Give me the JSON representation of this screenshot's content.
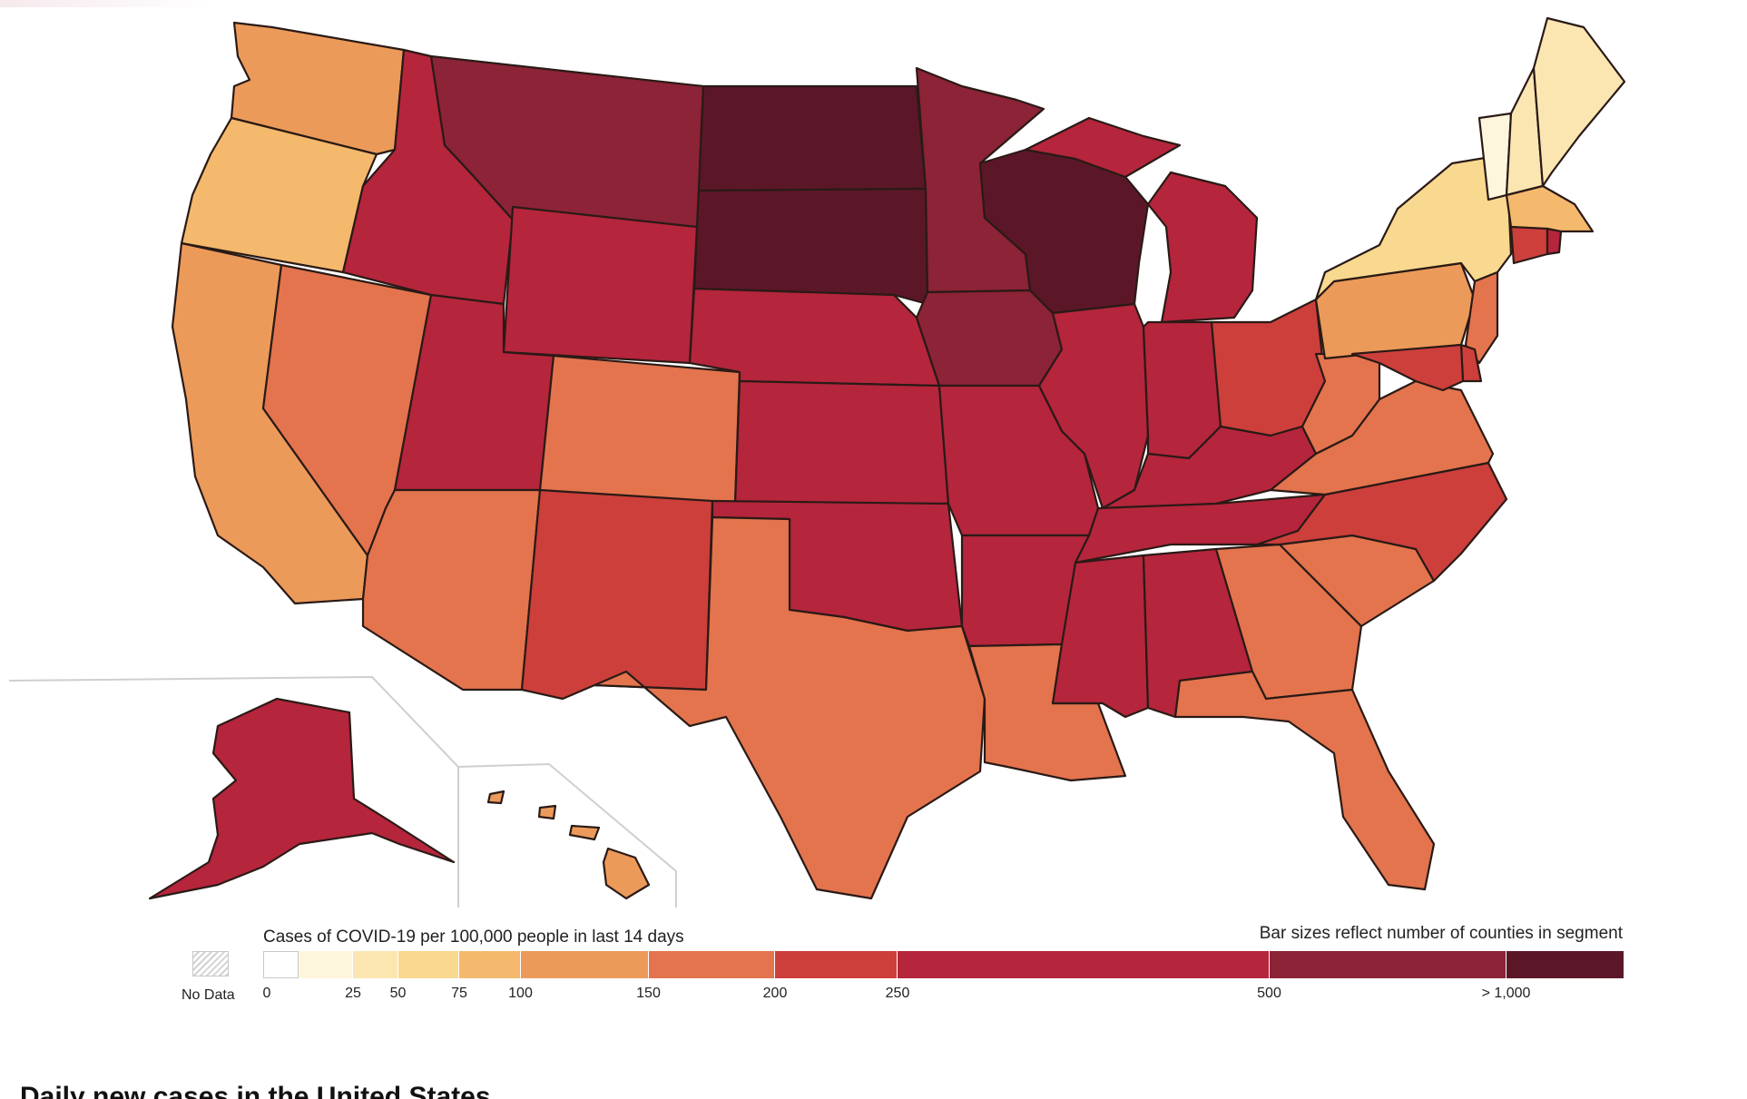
{
  "legend": {
    "title": "Cases of COVID-19 per 100,000 people in last 14 days",
    "note": "Bar sizes reflect number of counties in segment",
    "no_data_label": "No Data",
    "ticks": [
      {
        "label": "0",
        "value": 0
      },
      {
        "label": "25",
        "value": 25
      },
      {
        "label": "50",
        "value": 50
      },
      {
        "label": "75",
        "value": 75
      },
      {
        "label": "100",
        "value": 100
      },
      {
        "label": "150",
        "value": 150
      },
      {
        "label": "200",
        "value": 200
      },
      {
        "label": "250",
        "value": 250
      },
      {
        "label": "500",
        "value": 500
      },
      {
        "label": "> 1,000",
        "value": 1000
      }
    ],
    "segments": [
      {
        "range": "0",
        "color": "#ffffff",
        "share": 0.026
      },
      {
        "range": "0-25",
        "color": "#fef6dc",
        "share": 0.04
      },
      {
        "range": "25-50",
        "color": "#fbe6b2",
        "share": 0.033
      },
      {
        "range": "50-75",
        "color": "#f9d88f",
        "share": 0.045
      },
      {
        "range": "75-100",
        "color": "#f4b96c",
        "share": 0.045
      },
      {
        "range": "100-150",
        "color": "#ec9a5a",
        "share": 0.094
      },
      {
        "range": "150-200",
        "color": "#e3744d",
        "share": 0.093
      },
      {
        "range": "200-250",
        "color": "#cd3f3b",
        "share": 0.09
      },
      {
        "range": "250-500",
        "color": "#b5253c",
        "share": 0.273
      },
      {
        "range": "500-1000",
        "color": "#8c2337",
        "share": 0.174
      },
      {
        "range": "1000+",
        "color": "#5b1728",
        "share": 0.087
      }
    ]
  },
  "map_states": [
    {
      "id": "WA",
      "fill": "#ec9a5a"
    },
    {
      "id": "OR",
      "fill": "#f4b96c"
    },
    {
      "id": "CA",
      "fill": "#ec9a5a"
    },
    {
      "id": "NV",
      "fill": "#e3744d"
    },
    {
      "id": "ID",
      "fill": "#b5253c"
    },
    {
      "id": "MT",
      "fill": "#8c2337"
    },
    {
      "id": "WY",
      "fill": "#b5253c"
    },
    {
      "id": "UT",
      "fill": "#b5253c"
    },
    {
      "id": "AZ",
      "fill": "#e3744d"
    },
    {
      "id": "CO",
      "fill": "#e3744d"
    },
    {
      "id": "NM",
      "fill": "#cd3f3b"
    },
    {
      "id": "ND",
      "fill": "#5b1728"
    },
    {
      "id": "SD",
      "fill": "#5b1728"
    },
    {
      "id": "NE",
      "fill": "#b5253c"
    },
    {
      "id": "KS",
      "fill": "#b5253c"
    },
    {
      "id": "OK",
      "fill": "#b5253c"
    },
    {
      "id": "TX",
      "fill": "#e3744d"
    },
    {
      "id": "MN",
      "fill": "#8c2337"
    },
    {
      "id": "IA",
      "fill": "#8c2337"
    },
    {
      "id": "MO",
      "fill": "#b5253c"
    },
    {
      "id": "AR",
      "fill": "#b5253c"
    },
    {
      "id": "LA",
      "fill": "#e3744d"
    },
    {
      "id": "WI",
      "fill": "#5b1728"
    },
    {
      "id": "IL",
      "fill": "#b5253c"
    },
    {
      "id": "MI",
      "fill": "#b5253c"
    },
    {
      "id": "IN",
      "fill": "#b5253c"
    },
    {
      "id": "OH",
      "fill": "#cd3f3b"
    },
    {
      "id": "KY",
      "fill": "#b5253c"
    },
    {
      "id": "TN",
      "fill": "#b5253c"
    },
    {
      "id": "MS",
      "fill": "#b5253c"
    },
    {
      "id": "AL",
      "fill": "#b5253c"
    },
    {
      "id": "GA",
      "fill": "#e3744d"
    },
    {
      "id": "FL",
      "fill": "#e3744d"
    },
    {
      "id": "SC",
      "fill": "#e3744d"
    },
    {
      "id": "NC",
      "fill": "#cd3f3b"
    },
    {
      "id": "VA",
      "fill": "#e3744d"
    },
    {
      "id": "WV",
      "fill": "#e3744d"
    },
    {
      "id": "PA",
      "fill": "#ec9a5a"
    },
    {
      "id": "NY",
      "fill": "#f9d88f"
    },
    {
      "id": "VT",
      "fill": "#fef6dc"
    },
    {
      "id": "NH",
      "fill": "#fbe6b2"
    },
    {
      "id": "ME",
      "fill": "#fbe6b2"
    },
    {
      "id": "MA",
      "fill": "#f4b96c"
    },
    {
      "id": "CT",
      "fill": "#cd3f3b"
    },
    {
      "id": "RI",
      "fill": "#b5253c"
    },
    {
      "id": "NJ",
      "fill": "#e3744d"
    },
    {
      "id": "DE",
      "fill": "#cd3f3b"
    },
    {
      "id": "MD",
      "fill": "#cd3f3b"
    },
    {
      "id": "AK",
      "fill": "#b5253c"
    },
    {
      "id": "HI",
      "fill": "#ec9a5a"
    }
  ],
  "section_heading": "Daily new cases in the United States"
}
